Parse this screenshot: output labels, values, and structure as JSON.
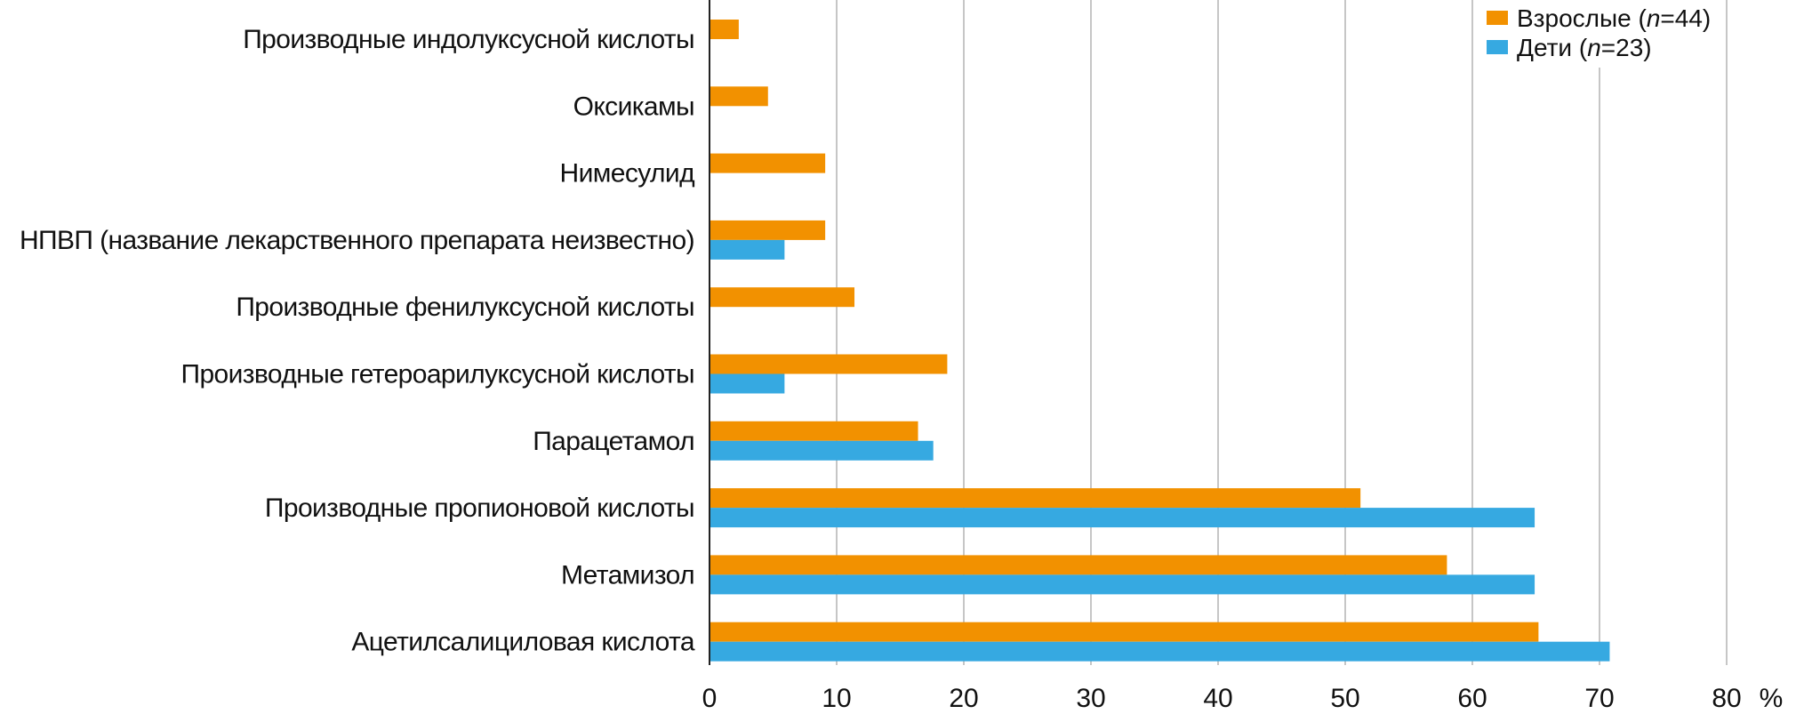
{
  "chart_data": {
    "type": "bar",
    "orientation": "horizontal",
    "title": "",
    "xlabel": "%",
    "ylabel": "",
    "xlim": [
      0,
      80
    ],
    "xticks": [
      0,
      10,
      20,
      30,
      40,
      50,
      60,
      70,
      80
    ],
    "grid": true,
    "legend_position": "top-right",
    "categories": [
      "Производные индолуксусной кислоты",
      "Оксикамы",
      "Нимесулид",
      "НПВП (название лекарственного препарата неизвестно)",
      "Производные фенилуксусной кислоты",
      "Производные гетероарилуксусной кислоты",
      "Парацетамол",
      "Производные пропионовой кислоты",
      "Метамизол",
      "Ацетилсалициловая кислота"
    ],
    "series": [
      {
        "name": "Взрослые",
        "n_label": "n",
        "n_value": "=44",
        "color": "#F29100",
        "values": [
          2.3,
          4.6,
          9.1,
          9.1,
          11.4,
          18.7,
          16.4,
          51.2,
          58.0,
          65.2
        ]
      },
      {
        "name": "Дети",
        "n_label": "n",
        "n_value": "=23",
        "color": "#36A9E1",
        "values": [
          null,
          null,
          null,
          5.9,
          null,
          5.9,
          17.6,
          64.9,
          64.9,
          70.8
        ]
      }
    ]
  }
}
